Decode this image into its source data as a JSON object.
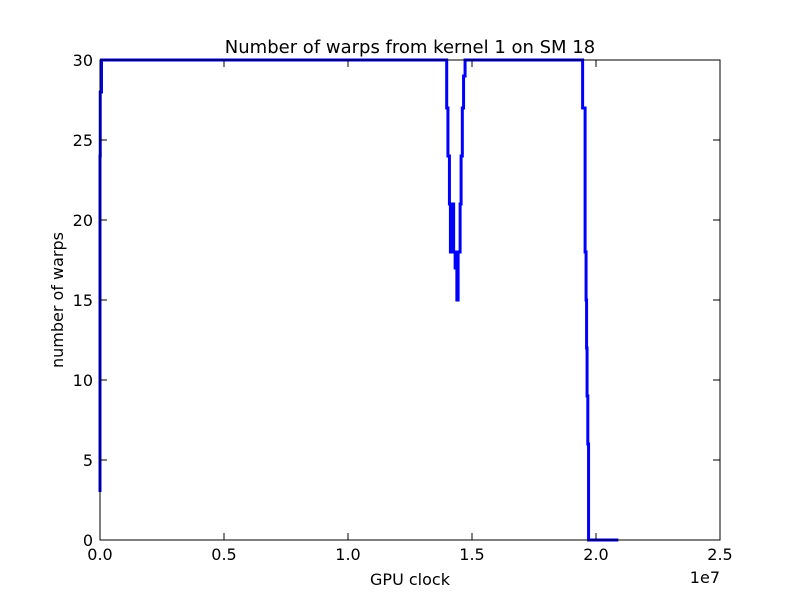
{
  "chart_data": {
    "type": "line",
    "title": "Number of warps from kernel 1 on SM 18",
    "xlabel": "GPU clock",
    "ylabel": "number of warps",
    "x_offset_text": "1e7",
    "xlim": [
      0,
      25000000
    ],
    "ylim": [
      0,
      30
    ],
    "x_ticks": [
      0,
      5000000,
      10000000,
      15000000,
      20000000,
      25000000
    ],
    "x_tick_labels": [
      "0.0",
      "0.5",
      "1.0",
      "1.5",
      "2.0",
      "2.5"
    ],
    "y_ticks": [
      0,
      5,
      10,
      15,
      20,
      25,
      30
    ],
    "y_tick_labels": [
      "0",
      "5",
      "10",
      "15",
      "20",
      "25",
      "30"
    ],
    "grid": false,
    "line_color": "#0000ff",
    "series": [
      {
        "x": [
          0,
          0,
          10000,
          10000,
          60000,
          60000,
          13980000,
          13980000,
          14030000,
          14030000,
          14090000,
          14090000,
          14130000,
          14130000,
          14180000,
          14180000,
          14260000,
          14260000,
          14320000,
          14320000,
          14390000,
          14390000,
          14440000,
          14440000,
          14520000,
          14520000,
          14560000,
          14560000,
          14610000,
          14610000,
          14660000,
          14660000,
          14720000,
          14720000,
          14760000,
          14760000,
          19460000,
          19460000,
          19560000,
          19560000,
          19600000,
          19600000,
          19620000,
          19620000,
          19640000,
          19640000,
          19670000,
          19670000,
          19700000,
          19700000,
          19730000,
          19730000,
          20900000
        ],
        "y": [
          3,
          24,
          24,
          28,
          28,
          30,
          30,
          27,
          27,
          24,
          24,
          21,
          21,
          18,
          18,
          21,
          21,
          18,
          18,
          17,
          17,
          15,
          15,
          18,
          18,
          21,
          21,
          24,
          24,
          27,
          27,
          29,
          29,
          30,
          30,
          30,
          30,
          27,
          27,
          18,
          18,
          15,
          15,
          12,
          12,
          9,
          9,
          6,
          6,
          0,
          0,
          0,
          0
        ]
      }
    ]
  }
}
